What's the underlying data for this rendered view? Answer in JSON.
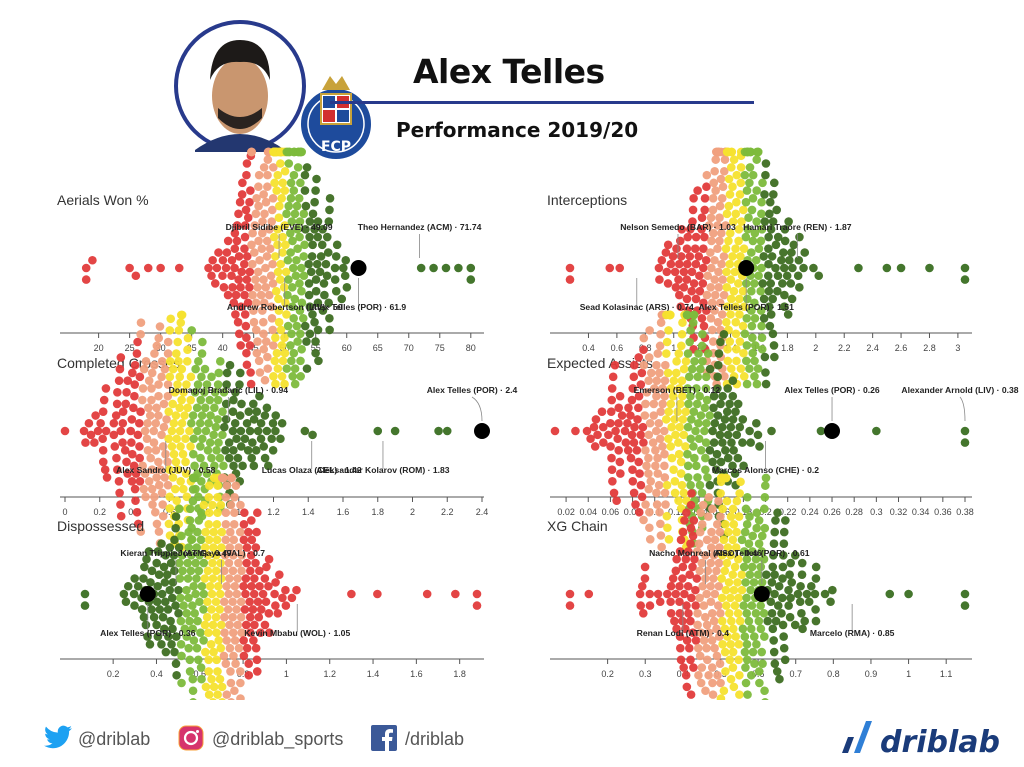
{
  "header": {
    "player_name": "Alex Telles",
    "season": "Performance 2019/20",
    "club_crest_letters": "FCP"
  },
  "footer": {
    "twitter": "@driblab",
    "instagram": "@driblab_sports",
    "facebook": "/driblab",
    "brand": "driblab"
  },
  "colors": {
    "bin1": "#e23b3b",
    "bin2": "#f0a07e",
    "bin3": "#f5e12e",
    "bin4": "#7dbb3c",
    "bin5": "#3e6e22",
    "outlier_green": "#3a6f22",
    "highlight": "#000000",
    "accent": "#283a8c"
  },
  "chart_data": [
    {
      "type": "scatter",
      "title": "Aerials Won %",
      "direction": "low-to-high",
      "xlim": [
        17,
        81
      ],
      "ticks": [
        "20",
        "25",
        "30",
        "35",
        "40",
        "45",
        "50",
        "55",
        "60",
        "65",
        "70",
        "75",
        "80"
      ],
      "tick_values": [
        20,
        25,
        30,
        35,
        40,
        45,
        50,
        55,
        60,
        65,
        70,
        75,
        80
      ],
      "dist": {
        "min": 18,
        "max": 80,
        "sparse_low": [
          18,
          19,
          25,
          26,
          28,
          30,
          33
        ],
        "sparse_high": [
          72,
          74,
          76,
          78,
          80
        ],
        "core": [
          35,
          64
        ]
      },
      "highlight": {
        "label": "Alex Telles (POR) · 61.9",
        "value": 61.9
      },
      "annotations": [
        {
          "label": "Djibril Sidibe (EVE) · 49.09",
          "value": 49.09,
          "pos": "above"
        },
        {
          "label": "Theo Hernandez (ACM) · 71.74",
          "value": 71.74,
          "pos": "above"
        },
        {
          "label": "Andrew Robertson (LIV) · 50",
          "value": 50,
          "pos": "below"
        }
      ]
    },
    {
      "type": "scatter",
      "title": "Interceptions",
      "direction": "low-to-high",
      "xlim": [
        0.27,
        3.05
      ],
      "ticks": [
        "0.4",
        "0.6",
        "0.8",
        "1",
        "1.2",
        "1.4",
        "1.6",
        "1.8",
        "2",
        "2.2",
        "2.4",
        "2.6",
        "2.8",
        "3"
      ],
      "tick_values": [
        0.4,
        0.6,
        0.8,
        1,
        1.2,
        1.4,
        1.6,
        1.8,
        2,
        2.2,
        2.4,
        2.6,
        2.8,
        3
      ],
      "dist": {
        "min": 0.27,
        "max": 3.05,
        "sparse_low": [
          0.27,
          0.55,
          0.62
        ],
        "sparse_high": [
          2.3,
          2.5,
          2.6,
          2.8,
          3.05
        ],
        "core": [
          0.65,
          2.2
        ]
      },
      "highlight": {
        "label": "Alex Telles (POR) · 1.51",
        "value": 1.51
      },
      "annotations": [
        {
          "label": "Nelson Semedo (BAR) · 1.03",
          "value": 1.03,
          "pos": "above"
        },
        {
          "label": "Hamari Traore (REN) · 1.87",
          "value": 1.87,
          "pos": "above"
        },
        {
          "label": "Sead Kolasinac (ARS) · 0.74",
          "value": 0.74,
          "pos": "below"
        }
      ]
    },
    {
      "type": "scatter",
      "title": "Completed Crosses",
      "direction": "low-to-high",
      "xlim": [
        0,
        2.4
      ],
      "ticks": [
        "0",
        "0.2",
        "0.4",
        "0.6",
        "0.8",
        "1",
        "1.2",
        "1.4",
        "1.6",
        "1.8",
        "2",
        "2.2",
        "2.4"
      ],
      "tick_values": [
        0,
        0.2,
        0.4,
        0.6,
        0.8,
        1,
        1.2,
        1.4,
        1.6,
        1.8,
        2,
        2.2,
        2.4
      ],
      "dist": {
        "min": 0,
        "max": 2.4,
        "sparse_low": [],
        "sparse_high": [
          1.8,
          1.9,
          2.15,
          2.2
        ],
        "core": [
          0,
          1.7
        ]
      },
      "highlight": {
        "label": "Alex Telles (POR) · 2.4",
        "value": 2.4
      },
      "annotations": [
        {
          "label": "Domagoj Bradaric (LIL) · 0.94",
          "value": 0.94,
          "pos": "above"
        },
        {
          "label": "Aleksandar Kolarov (ROM) · 1.83",
          "value": 1.83,
          "pos": "below"
        },
        {
          "label": "Alex Sandro (JUV) · 0.58",
          "value": 0.58,
          "pos": "below"
        },
        {
          "label": "Lucas Olaza (CEL) · 1.42",
          "value": 1.42,
          "pos": "below"
        }
      ]
    },
    {
      "type": "scatter",
      "title": "Expected Assists",
      "direction": "low-to-high",
      "xlim": [
        0.01,
        0.38
      ],
      "ticks": [
        "0.02",
        "0.04",
        "0.06",
        "0.08",
        "0.1",
        "0.12",
        "0.14",
        "0.16",
        "0.18",
        "0.2",
        "0.22",
        "0.24",
        "0.26",
        "0.28",
        "0.3",
        "0.32",
        "0.34",
        "0.36",
        "0.38"
      ],
      "tick_values": [
        0.02,
        0.04,
        0.06,
        0.08,
        0.1,
        0.12,
        0.14,
        0.16,
        0.18,
        0.2,
        0.22,
        0.24,
        0.26,
        0.28,
        0.3,
        0.32,
        0.34,
        0.36,
        0.38
      ],
      "dist": {
        "min": 0.01,
        "max": 0.38,
        "sparse_low": [],
        "sparse_high": [
          0.25,
          0.3,
          0.38
        ],
        "core": [
          0.01,
          0.23
        ]
      },
      "highlight": {
        "label": "Alex Telles (POR) · 0.26",
        "value": 0.26
      },
      "annotations": [
        {
          "label": "Emerson (BET) · 0.12",
          "value": 0.12,
          "pos": "above"
        },
        {
          "label": "Alexander Arnold (LIV) · 0.38",
          "value": 0.38,
          "pos": "above"
        },
        {
          "label": "Marcos Alonso (CHE) · 0.2",
          "value": 0.2,
          "pos": "below"
        }
      ]
    },
    {
      "type": "scatter",
      "title": "Dispossessed",
      "direction": "high-to-low",
      "xlim": [
        0.07,
        1.88
      ],
      "ticks": [
        "0.2",
        "0.4",
        "0.6",
        "0.8",
        "1",
        "1.2",
        "1.4",
        "1.6",
        "1.8"
      ],
      "tick_values": [
        0.2,
        0.4,
        0.6,
        0.8,
        1,
        1.2,
        1.4,
        1.6,
        1.8
      ],
      "dist": {
        "min": 0.07,
        "max": 1.88,
        "sparse_low": [
          0.07
        ],
        "sparse_high": [
          1.3,
          1.42,
          1.65,
          1.78,
          1.88
        ],
        "core": [
          0.1,
          1.2
        ]
      },
      "highlight": {
        "label": "Alex Telles (POR) · 0.36",
        "value": 0.36
      },
      "annotations": [
        {
          "label": "Kieran Trippier (ATM) · 0.49",
          "value": 0.49,
          "pos": "above"
        },
        {
          "label": "Jose Gaya (VAL) · 0.7",
          "value": 0.7,
          "pos": "above"
        },
        {
          "label": "Kevin Mbabu (WOL) · 1.05",
          "value": 1.05,
          "pos": "below"
        }
      ]
    },
    {
      "type": "scatter",
      "title": "XG Chain",
      "direction": "low-to-high",
      "xlim": [
        0.1,
        1.15
      ],
      "ticks": [
        "0.2",
        "0.3",
        "0.4",
        "0.5",
        "0.6",
        "0.7",
        "0.8",
        "0.9",
        "1",
        "1.1"
      ],
      "tick_values": [
        0.2,
        0.3,
        0.4,
        0.5,
        0.6,
        0.7,
        0.8,
        0.9,
        1,
        1.1
      ],
      "dist": {
        "min": 0.1,
        "max": 1.15,
        "sparse_low": [
          0.1,
          0.15
        ],
        "sparse_high": [
          0.95,
          1,
          1.15
        ],
        "core": [
          0.18,
          0.9
        ]
      },
      "highlight": {
        "label": "Alex Telles (POR) · 0.61",
        "value": 0.61
      },
      "annotations": [
        {
          "label": "Nacho Monreal (RSO) · 0.46",
          "value": 0.46,
          "pos": "above"
        },
        {
          "label": "Renan Lodi (ATM) · 0.4",
          "value": 0.4,
          "pos": "below"
        },
        {
          "label": "Marcelo (RMA) · 0.85",
          "value": 0.85,
          "pos": "below"
        }
      ]
    }
  ]
}
